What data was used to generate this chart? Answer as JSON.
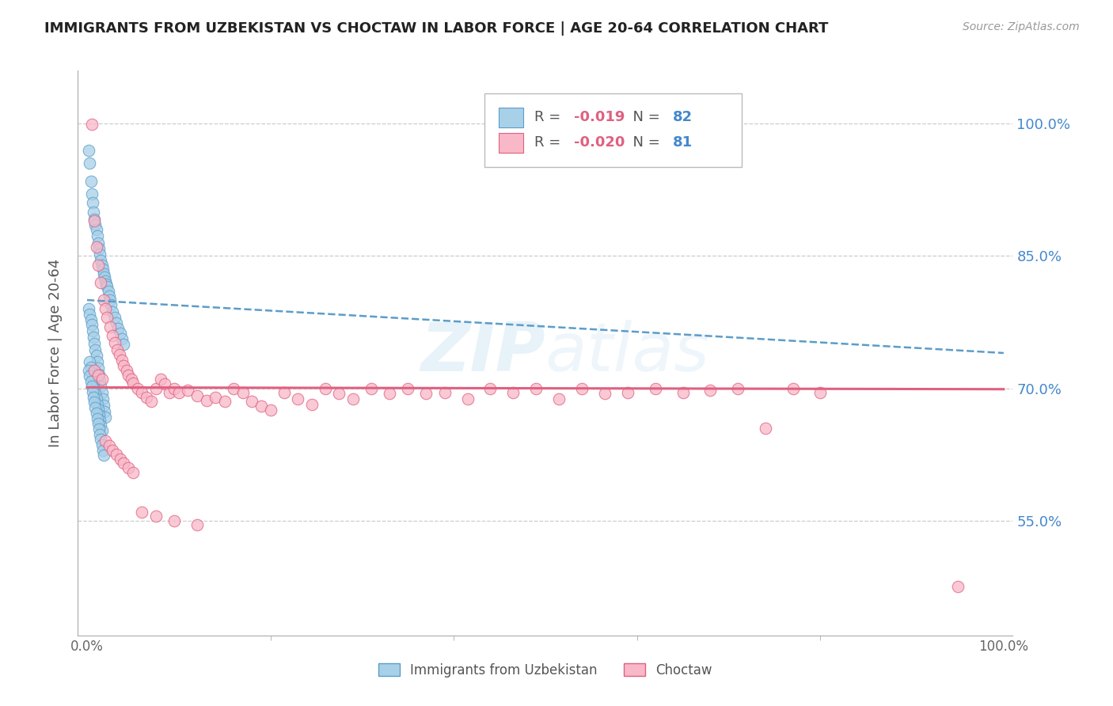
{
  "title": "IMMIGRANTS FROM UZBEKISTAN VS CHOCTAW IN LABOR FORCE | AGE 20-64 CORRELATION CHART",
  "source": "Source: ZipAtlas.com",
  "ylabel": "In Labor Force | Age 20-64",
  "yticklabels": [
    "55.0%",
    "70.0%",
    "85.0%",
    "100.0%"
  ],
  "ytick_positions": [
    0.55,
    0.7,
    0.85,
    1.0
  ],
  "xlim": [
    -0.01,
    1.01
  ],
  "ylim": [
    0.42,
    1.06
  ],
  "legend_label1": "Immigrants from Uzbekistan",
  "legend_label2": "Choctaw",
  "legend_R1_val": "-0.019",
  "legend_N1_val": "82",
  "legend_R2_val": "-0.020",
  "legend_N2_val": "81",
  "color_blue_fill": "#a8d0e8",
  "color_blue_edge": "#5b9dc9",
  "color_pink_fill": "#f8b8c8",
  "color_pink_edge": "#e06080",
  "color_blue_trend": "#5b9dc9",
  "color_pink_trend": "#e06080",
  "color_title": "#222222",
  "color_axis_label": "#555555",
  "color_ytick_label": "#4488cc",
  "color_grid": "#cccccc",
  "watermark_color": "#d8eaf5",
  "scatter_blue_x": [
    0.002,
    0.003,
    0.004,
    0.005,
    0.006,
    0.007,
    0.008,
    0.009,
    0.01,
    0.011,
    0.012,
    0.013,
    0.014,
    0.015,
    0.016,
    0.017,
    0.018,
    0.019,
    0.02,
    0.021,
    0.022,
    0.023,
    0.024,
    0.025,
    0.026,
    0.028,
    0.03,
    0.032,
    0.034,
    0.036,
    0.038,
    0.04,
    0.002,
    0.003,
    0.004,
    0.005,
    0.006,
    0.007,
    0.008,
    0.009,
    0.01,
    0.011,
    0.012,
    0.013,
    0.014,
    0.015,
    0.016,
    0.017,
    0.018,
    0.019,
    0.02,
    0.003,
    0.004,
    0.005,
    0.006,
    0.007,
    0.008,
    0.009,
    0.01,
    0.011,
    0.012,
    0.013,
    0.014,
    0.015,
    0.016,
    0.002,
    0.003,
    0.004,
    0.005,
    0.006,
    0.007,
    0.008,
    0.009,
    0.01,
    0.011,
    0.012,
    0.013,
    0.014,
    0.015,
    0.016,
    0.017,
    0.018
  ],
  "scatter_blue_y": [
    0.97,
    0.955,
    0.935,
    0.92,
    0.91,
    0.9,
    0.892,
    0.885,
    0.88,
    0.873,
    0.865,
    0.858,
    0.852,
    0.845,
    0.84,
    0.835,
    0.83,
    0.826,
    0.822,
    0.818,
    0.815,
    0.81,
    0.805,
    0.8,
    0.795,
    0.787,
    0.78,
    0.774,
    0.768,
    0.762,
    0.756,
    0.75,
    0.79,
    0.784,
    0.778,
    0.772,
    0.765,
    0.758,
    0.751,
    0.744,
    0.737,
    0.73,
    0.723,
    0.716,
    0.709,
    0.702,
    0.695,
    0.688,
    0.681,
    0.674,
    0.667,
    0.73,
    0.724,
    0.718,
    0.712,
    0.706,
    0.7,
    0.694,
    0.688,
    0.682,
    0.676,
    0.67,
    0.664,
    0.658,
    0.652,
    0.72,
    0.714,
    0.708,
    0.702,
    0.696,
    0.69,
    0.684,
    0.678,
    0.672,
    0.666,
    0.66,
    0.654,
    0.648,
    0.642,
    0.636,
    0.63,
    0.624
  ],
  "scatter_pink_x": [
    0.005,
    0.008,
    0.01,
    0.012,
    0.015,
    0.018,
    0.02,
    0.022,
    0.025,
    0.028,
    0.03,
    0.033,
    0.035,
    0.038,
    0.04,
    0.043,
    0.045,
    0.048,
    0.05,
    0.055,
    0.06,
    0.065,
    0.07,
    0.075,
    0.08,
    0.085,
    0.09,
    0.095,
    0.1,
    0.11,
    0.12,
    0.13,
    0.14,
    0.15,
    0.16,
    0.17,
    0.18,
    0.19,
    0.2,
    0.215,
    0.23,
    0.245,
    0.26,
    0.275,
    0.29,
    0.31,
    0.33,
    0.35,
    0.37,
    0.39,
    0.415,
    0.44,
    0.465,
    0.49,
    0.515,
    0.54,
    0.565,
    0.59,
    0.62,
    0.65,
    0.68,
    0.71,
    0.74,
    0.77,
    0.8,
    0.008,
    0.012,
    0.016,
    0.02,
    0.024,
    0.028,
    0.032,
    0.036,
    0.04,
    0.045,
    0.05,
    0.06,
    0.075,
    0.095,
    0.12,
    0.95
  ],
  "scatter_pink_y": [
    0.999,
    0.89,
    0.86,
    0.84,
    0.82,
    0.8,
    0.79,
    0.78,
    0.77,
    0.76,
    0.752,
    0.744,
    0.738,
    0.732,
    0.726,
    0.72,
    0.715,
    0.71,
    0.706,
    0.7,
    0.695,
    0.69,
    0.685,
    0.7,
    0.71,
    0.705,
    0.695,
    0.7,
    0.695,
    0.698,
    0.692,
    0.686,
    0.69,
    0.685,
    0.7,
    0.695,
    0.685,
    0.68,
    0.675,
    0.695,
    0.688,
    0.682,
    0.7,
    0.694,
    0.688,
    0.7,
    0.694,
    0.7,
    0.694,
    0.695,
    0.688,
    0.7,
    0.695,
    0.7,
    0.688,
    0.7,
    0.694,
    0.695,
    0.7,
    0.695,
    0.698,
    0.7,
    0.655,
    0.7,
    0.695,
    0.72,
    0.715,
    0.71,
    0.64,
    0.635,
    0.63,
    0.625,
    0.62,
    0.615,
    0.61,
    0.605,
    0.56,
    0.555,
    0.55,
    0.545,
    0.475
  ],
  "blue_trend_x": [
    0.0,
    1.0
  ],
  "blue_trend_y": [
    0.8,
    0.74
  ],
  "pink_trend_x": [
    0.0,
    1.0
  ],
  "pink_trend_y": [
    0.701,
    0.699
  ]
}
